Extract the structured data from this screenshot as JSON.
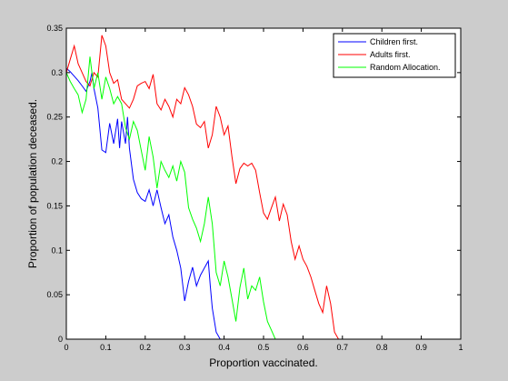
{
  "chart_data": {
    "type": "line",
    "title": "",
    "xlabel": "Proportion vaccinated.",
    "ylabel": "Proportion of population deceased.",
    "xlim": [
      0,
      1
    ],
    "ylim": [
      0,
      0.35
    ],
    "x_ticks": [
      "0",
      "0.1",
      "0.2",
      "0.3",
      "0.4",
      "0.5",
      "0.6",
      "0.7",
      "0.8",
      "0.9",
      "1"
    ],
    "y_ticks": [
      "0",
      "0.05",
      "0.1",
      "0.15",
      "0.2",
      "0.25",
      "0.3",
      "0.35"
    ],
    "grid": false,
    "legend_position": "top-right",
    "series": [
      {
        "name": "Children first.",
        "color": "#0000ff",
        "points": [
          [
            0.0,
            0.305
          ],
          [
            0.01,
            0.301
          ],
          [
            0.02,
            0.296
          ],
          [
            0.03,
            0.291
          ],
          [
            0.04,
            0.285
          ],
          [
            0.05,
            0.279
          ],
          [
            0.06,
            0.29
          ],
          [
            0.065,
            0.3
          ],
          [
            0.07,
            0.282
          ],
          [
            0.08,
            0.26
          ],
          [
            0.09,
            0.213
          ],
          [
            0.1,
            0.21
          ],
          [
            0.11,
            0.243
          ],
          [
            0.12,
            0.22
          ],
          [
            0.13,
            0.248
          ],
          [
            0.135,
            0.215
          ],
          [
            0.14,
            0.245
          ],
          [
            0.15,
            0.22
          ],
          [
            0.155,
            0.25
          ],
          [
            0.16,
            0.215
          ],
          [
            0.17,
            0.18
          ],
          [
            0.18,
            0.165
          ],
          [
            0.19,
            0.158
          ],
          [
            0.2,
            0.155
          ],
          [
            0.21,
            0.168
          ],
          [
            0.22,
            0.15
          ],
          [
            0.23,
            0.168
          ],
          [
            0.24,
            0.148
          ],
          [
            0.25,
            0.13
          ],
          [
            0.26,
            0.14
          ],
          [
            0.27,
            0.115
          ],
          [
            0.28,
            0.1
          ],
          [
            0.29,
            0.08
          ],
          [
            0.3,
            0.043
          ],
          [
            0.31,
            0.065
          ],
          [
            0.32,
            0.081
          ],
          [
            0.33,
            0.06
          ],
          [
            0.34,
            0.072
          ],
          [
            0.35,
            0.08
          ],
          [
            0.36,
            0.088
          ],
          [
            0.365,
            0.06
          ],
          [
            0.37,
            0.035
          ],
          [
            0.38,
            0.008
          ],
          [
            0.39,
            0.0
          ]
        ]
      },
      {
        "name": "Adults first.",
        "color": "#ff0000",
        "points": [
          [
            0.0,
            0.3
          ],
          [
            0.01,
            0.315
          ],
          [
            0.02,
            0.33
          ],
          [
            0.03,
            0.31
          ],
          [
            0.04,
            0.3
          ],
          [
            0.05,
            0.29
          ],
          [
            0.06,
            0.285
          ],
          [
            0.07,
            0.3
          ],
          [
            0.08,
            0.295
          ],
          [
            0.09,
            0.342
          ],
          [
            0.1,
            0.33
          ],
          [
            0.11,
            0.3
          ],
          [
            0.12,
            0.288
          ],
          [
            0.13,
            0.292
          ],
          [
            0.14,
            0.27
          ],
          [
            0.15,
            0.265
          ],
          [
            0.16,
            0.26
          ],
          [
            0.17,
            0.27
          ],
          [
            0.18,
            0.285
          ],
          [
            0.19,
            0.288
          ],
          [
            0.2,
            0.29
          ],
          [
            0.21,
            0.282
          ],
          [
            0.22,
            0.298
          ],
          [
            0.23,
            0.265
          ],
          [
            0.24,
            0.258
          ],
          [
            0.25,
            0.27
          ],
          [
            0.26,
            0.262
          ],
          [
            0.27,
            0.25
          ],
          [
            0.28,
            0.27
          ],
          [
            0.29,
            0.265
          ],
          [
            0.3,
            0.283
          ],
          [
            0.31,
            0.275
          ],
          [
            0.32,
            0.262
          ],
          [
            0.33,
            0.242
          ],
          [
            0.34,
            0.238
          ],
          [
            0.35,
            0.245
          ],
          [
            0.36,
            0.215
          ],
          [
            0.37,
            0.23
          ],
          [
            0.38,
            0.262
          ],
          [
            0.39,
            0.25
          ],
          [
            0.4,
            0.23
          ],
          [
            0.41,
            0.24
          ],
          [
            0.42,
            0.205
          ],
          [
            0.43,
            0.175
          ],
          [
            0.44,
            0.192
          ],
          [
            0.45,
            0.198
          ],
          [
            0.46,
            0.195
          ],
          [
            0.47,
            0.198
          ],
          [
            0.48,
            0.19
          ],
          [
            0.49,
            0.165
          ],
          [
            0.5,
            0.142
          ],
          [
            0.51,
            0.135
          ],
          [
            0.52,
            0.148
          ],
          [
            0.53,
            0.16
          ],
          [
            0.54,
            0.133
          ],
          [
            0.55,
            0.152
          ],
          [
            0.56,
            0.14
          ],
          [
            0.57,
            0.11
          ],
          [
            0.58,
            0.09
          ],
          [
            0.59,
            0.105
          ],
          [
            0.6,
            0.09
          ],
          [
            0.61,
            0.082
          ],
          [
            0.62,
            0.07
          ],
          [
            0.63,
            0.055
          ],
          [
            0.64,
            0.04
          ],
          [
            0.65,
            0.03
          ],
          [
            0.66,
            0.06
          ],
          [
            0.67,
            0.04
          ],
          [
            0.68,
            0.008
          ],
          [
            0.69,
            0.0
          ]
        ]
      },
      {
        "name": "Random Allocation.",
        "color": "#00ff00",
        "points": [
          [
            0.0,
            0.3
          ],
          [
            0.01,
            0.29
          ],
          [
            0.02,
            0.282
          ],
          [
            0.03,
            0.275
          ],
          [
            0.04,
            0.255
          ],
          [
            0.05,
            0.27
          ],
          [
            0.06,
            0.318
          ],
          [
            0.065,
            0.3
          ],
          [
            0.07,
            0.282
          ],
          [
            0.08,
            0.3
          ],
          [
            0.09,
            0.27
          ],
          [
            0.1,
            0.295
          ],
          [
            0.11,
            0.282
          ],
          [
            0.12,
            0.265
          ],
          [
            0.13,
            0.273
          ],
          [
            0.14,
            0.265
          ],
          [
            0.15,
            0.238
          ],
          [
            0.16,
            0.225
          ],
          [
            0.17,
            0.245
          ],
          [
            0.18,
            0.235
          ],
          [
            0.19,
            0.212
          ],
          [
            0.2,
            0.19
          ],
          [
            0.21,
            0.228
          ],
          [
            0.22,
            0.205
          ],
          [
            0.23,
            0.17
          ],
          [
            0.24,
            0.2
          ],
          [
            0.25,
            0.19
          ],
          [
            0.26,
            0.182
          ],
          [
            0.27,
            0.195
          ],
          [
            0.28,
            0.178
          ],
          [
            0.29,
            0.2
          ],
          [
            0.3,
            0.188
          ],
          [
            0.31,
            0.148
          ],
          [
            0.32,
            0.135
          ],
          [
            0.33,
            0.125
          ],
          [
            0.34,
            0.11
          ],
          [
            0.35,
            0.13
          ],
          [
            0.36,
            0.16
          ],
          [
            0.37,
            0.13
          ],
          [
            0.38,
            0.075
          ],
          [
            0.39,
            0.06
          ],
          [
            0.4,
            0.088
          ],
          [
            0.41,
            0.07
          ],
          [
            0.42,
            0.045
          ],
          [
            0.43,
            0.02
          ],
          [
            0.44,
            0.058
          ],
          [
            0.45,
            0.08
          ],
          [
            0.46,
            0.045
          ],
          [
            0.47,
            0.06
          ],
          [
            0.48,
            0.055
          ],
          [
            0.49,
            0.07
          ],
          [
            0.5,
            0.042
          ],
          [
            0.51,
            0.02
          ],
          [
            0.52,
            0.01
          ],
          [
            0.53,
            0.0
          ]
        ]
      }
    ]
  }
}
